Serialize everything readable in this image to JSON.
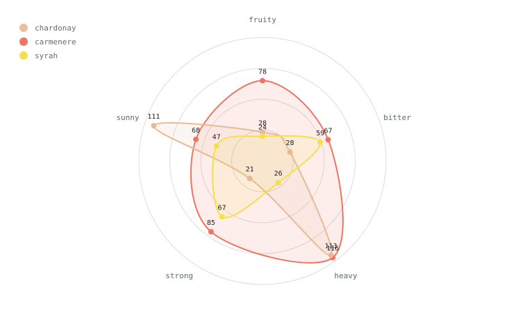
{
  "chart_data": {
    "type": "radar",
    "axes": [
      "fruity",
      "bitter",
      "heavy",
      "strong",
      "sunny"
    ],
    "rlim": [
      0,
      120
    ],
    "grid_rings": [
      30,
      60,
      90,
      120
    ],
    "legend_position": "top-left",
    "series": [
      {
        "name": "chardonay",
        "values": [
          28,
          28,
          113,
          21,
          111
        ],
        "color": "#e8b994"
      },
      {
        "name": "carmenere",
        "values": [
          78,
          67,
          116,
          85,
          68
        ],
        "color": "#f07462"
      },
      {
        "name": "syrah",
        "values": [
          24,
          59,
          26,
          67,
          47
        ],
        "color": "#f5e04a"
      }
    ],
    "draw_order": [
      1,
      0,
      2
    ]
  }
}
